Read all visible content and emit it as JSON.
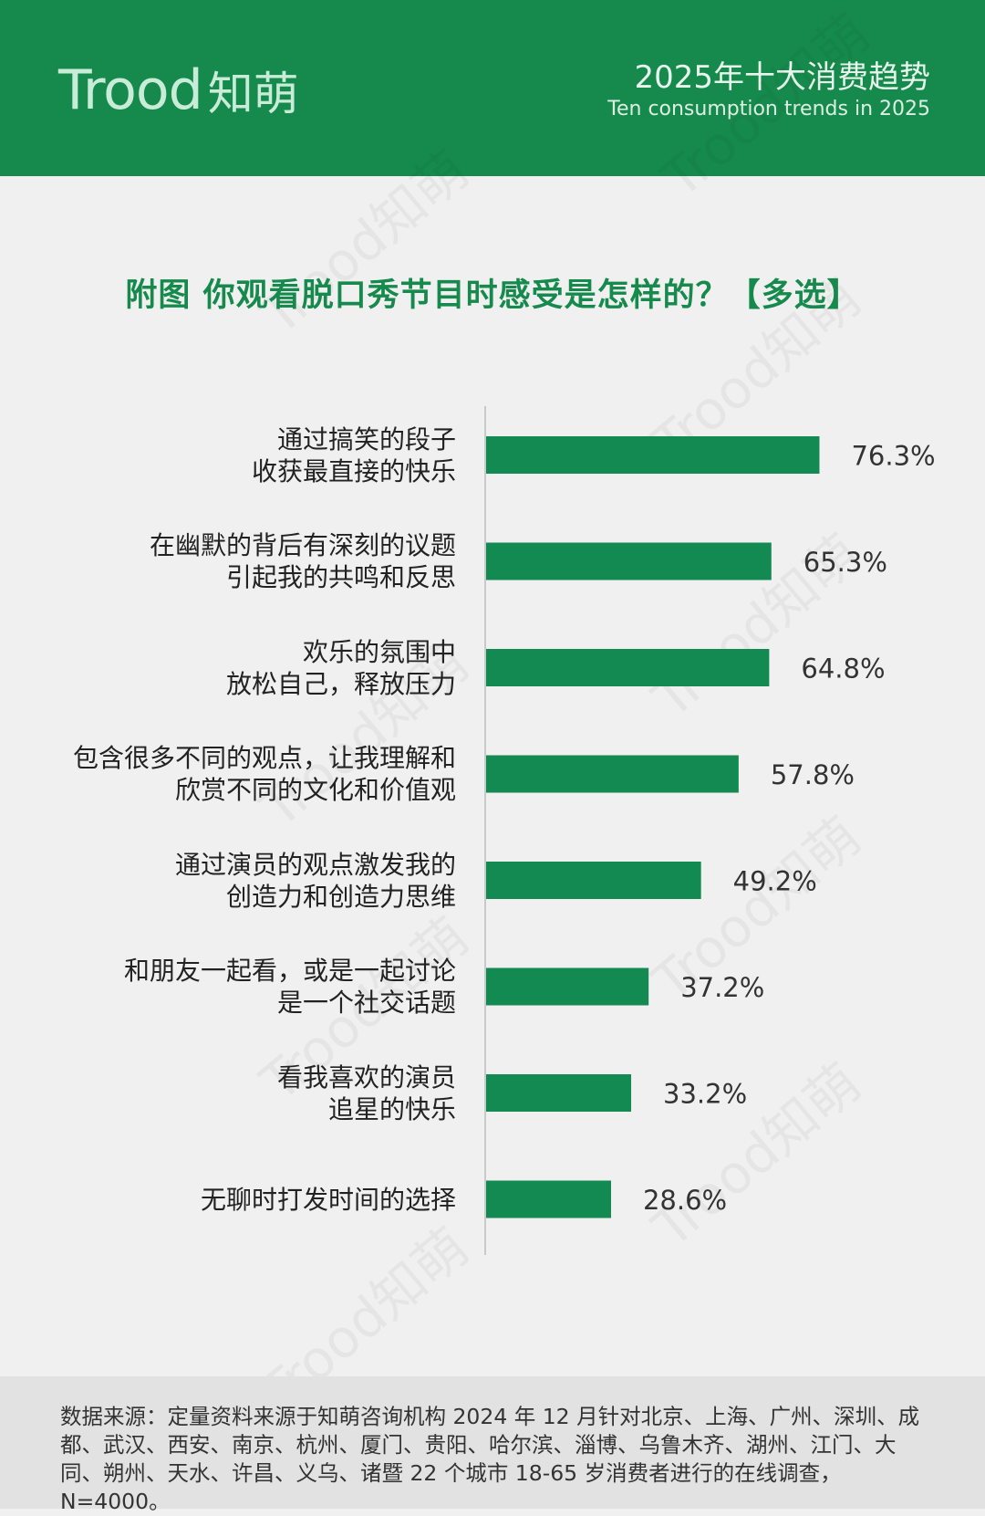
{
  "header": {
    "logo_latin": "Trood",
    "logo_cjk": "知萌",
    "title": "2025年十大消费趋势",
    "subtitle": "Ten consumption trends in 2025"
  },
  "watermark": "Trood知萌",
  "colors": {
    "brand_green": "#168a4d",
    "bar_green": "#138a52",
    "background": "#f0f0f0",
    "footer_bg": "#e2e2e2"
  },
  "chart_data": {
    "type": "bar",
    "orientation": "horizontal",
    "title": "附图 你观看脱口秀节目时感受是怎样的？【多选】",
    "categories": [
      [
        "通过搞笑的段子",
        "收获最直接的快乐"
      ],
      [
        "在幽默的背后有深刻的议题",
        "引起我的共鸣和反思"
      ],
      [
        "欢乐的氛围中",
        "放松自己，释放压力"
      ],
      [
        "包含很多不同的观点，让我理解和",
        "欣赏不同的文化和价值观"
      ],
      [
        "通过演员的观点激发我的",
        "创造力和创造力思维"
      ],
      [
        "和朋友一起看，或是一起讨论",
        "是一个社交话题"
      ],
      [
        "看我喜欢的演员",
        "追星的快乐"
      ],
      [
        "无聊时打发时间的选择"
      ]
    ],
    "values": [
      76.3,
      65.3,
      64.8,
      57.8,
      49.2,
      37.2,
      33.2,
      28.6
    ],
    "value_labels": [
      "76.3%",
      "65.3%",
      "64.8%",
      "57.8%",
      "49.2%",
      "37.2%",
      "33.2%",
      "28.6%"
    ],
    "unit": "%",
    "xlim": [
      0,
      100
    ],
    "grid": false,
    "legend": "none"
  },
  "footnote": "数据来源：定量资料来源于知萌咨询机构 2024 年 12 月针对北京、上海、广州、深圳、成都、武汉、西安、南京、杭州、厦门、贵阳、哈尔滨、淄博、乌鲁木齐、湖州、江门、大同、朔州、天水、许昌、义乌、诸暨 22 个城市 18-65 岁消费者进行的在线调查，N=4000。"
}
